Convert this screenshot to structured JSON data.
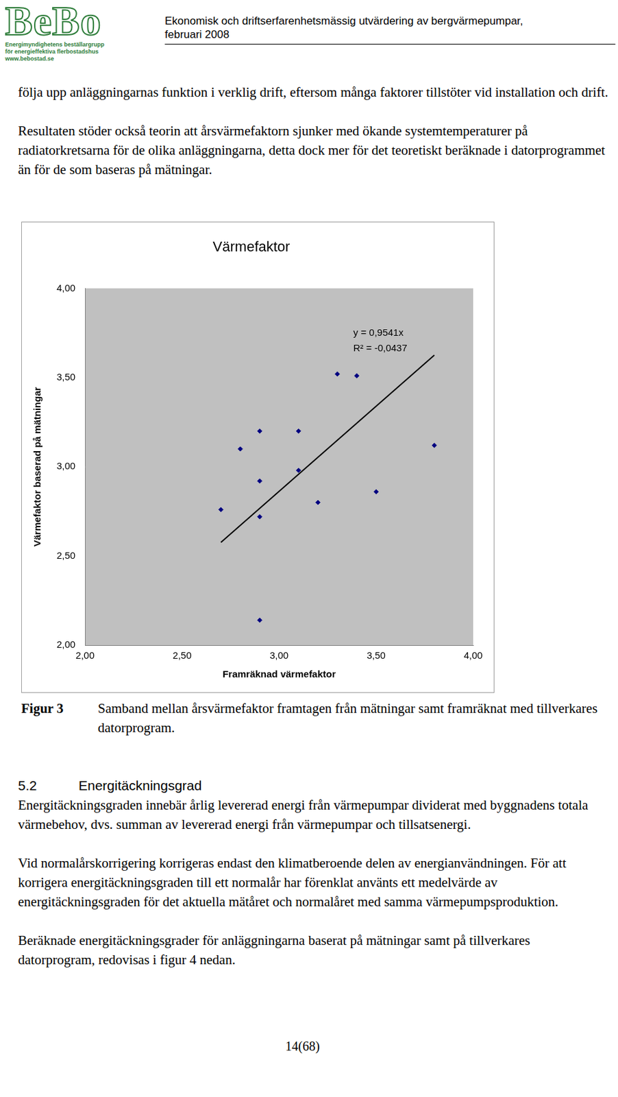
{
  "header": {
    "logo": {
      "title": "BeBo",
      "subtitle": [
        "Energimyndighetens beställargrupp",
        "för energieffektiva flerbostadshus",
        "www.bebostad.se"
      ]
    },
    "title": [
      "Ekonomisk och driftserfarenhetsmässig utvärdering av bergvärmepumpar,",
      "februari 2008"
    ]
  },
  "paragraphs": [
    "följa upp anläggningarnas funktion i verklig drift, eftersom många faktorer tillstöter vid installation och drift.",
    "Resultaten stöder också teorin att årsvärmefaktorn sjunker med ökande systemtemperaturer på radiatorkretsarna för de olika anläggningarna, detta dock mer för det teoretiskt beräknade i datorprogrammet än för de som baseras på mätningar."
  ],
  "chart_data": {
    "type": "scatter",
    "title": "Värmefaktor",
    "x_label": "Framräknad värmefaktor",
    "y_label": "Värmefaktor baserad på mätningar",
    "x": [
      2.7,
      2.8,
      2.9,
      2.9,
      2.9,
      2.9,
      3.1,
      3.1,
      3.2,
      3.3,
      3.4,
      3.5,
      3.8
    ],
    "values": [
      2.76,
      3.1,
      3.2,
      2.92,
      2.72,
      2.14,
      3.2,
      2.98,
      2.8,
      3.52,
      3.51,
      2.86,
      3.12
    ],
    "color": "#000080",
    "marker": "diamond",
    "trendline": {
      "slope": 0.9541,
      "x": [
        2.7,
        3.8
      ],
      "color": "#000000"
    },
    "annotations": [
      "y = 0,9541x",
      "R² = -0,0437"
    ],
    "xlim": [
      2,
      4
    ],
    "ylim": [
      2,
      4
    ],
    "xticks": [
      {
        "value": 2,
        "label": "2,00"
      },
      {
        "value": 2.5,
        "label": "2,50"
      },
      {
        "value": 3,
        "label": "3,00"
      },
      {
        "value": 3.5,
        "label": "3,50"
      },
      {
        "value": 4,
        "label": "4,00"
      }
    ],
    "yticks": [
      {
        "value": 2,
        "label": "2,00"
      },
      {
        "value": 2.5,
        "label": "2,50"
      },
      {
        "value": 3,
        "label": "3,00"
      },
      {
        "value": 3.5,
        "label": "3,50"
      },
      {
        "value": 4,
        "label": "4,00"
      }
    ],
    "grid": false
  },
  "caption": {
    "label": "Figur 3",
    "text": "Samband mellan årsvärmefaktor framtagen från mätningar samt framräknat med tillverkares datorprogram."
  },
  "section": {
    "number": "5.2",
    "heading": "Energitäckningsgrad",
    "paragraphs": [
      "Energitäckningsgraden innebär årlig levererad energi från värmepumpar dividerat med byggnadens totala värmebehov, dvs. summan av levererad energi från värmepumpar och tillsatsenergi.",
      "Vid normalårskorrigering korrigeras endast den klimatberoende delen av energianvändningen. För att korrigera energitäckningsgraden till ett normalår har förenklat använts ett medelvärde av energitäckningsgraden för det aktuella mätåret och normalåret med samma värmepumpsproduktion.",
      "Beräknade energitäckningsgrader för anläggningarna baserat på mätningar samt på tillverkares datorprogram, redovisas i figur 4 nedan."
    ]
  },
  "page_number": "14(68)"
}
